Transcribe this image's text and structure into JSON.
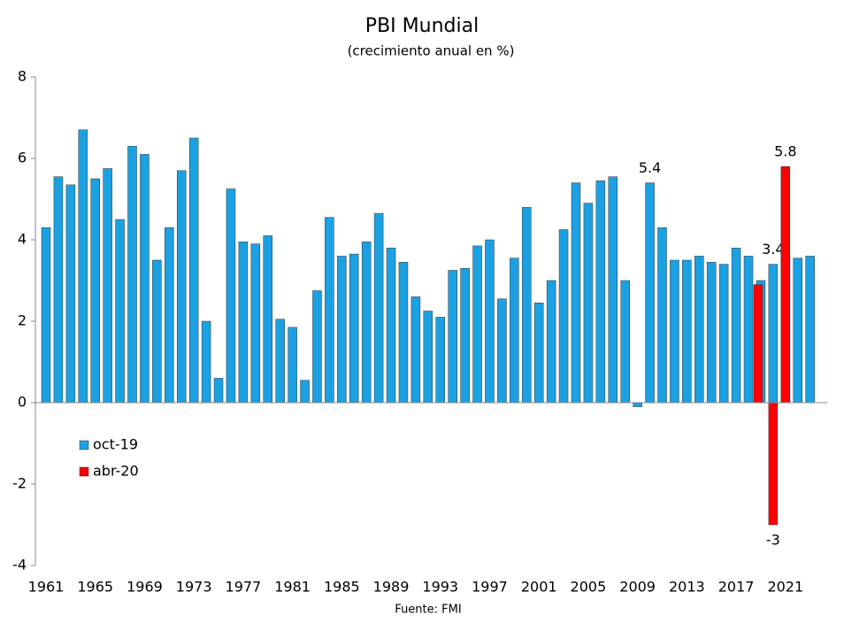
{
  "chart_data": {
    "type": "bar",
    "title": "PBI Mundial",
    "subtitle": "(crecimiento anual en %)",
    "source": "Fuente: FMI",
    "categories": [
      "1961",
      null,
      null,
      null,
      "1965",
      null,
      null,
      null,
      "1969",
      null,
      null,
      null,
      "1973",
      null,
      null,
      null,
      "1977",
      null,
      null,
      null,
      "1981",
      null,
      null,
      null,
      "1985",
      null,
      null,
      null,
      "1989",
      null,
      null,
      null,
      "1993",
      null,
      null,
      null,
      "1997",
      null,
      null,
      null,
      "2001",
      null,
      null,
      null,
      "2005",
      null,
      null,
      null,
      "2009",
      null,
      null,
      null,
      "2013",
      null,
      null,
      null,
      "2017",
      null,
      null,
      null,
      "2021",
      null,
      null
    ],
    "series": [
      {
        "name": "oct-19",
        "color": "#1ba1e2",
        "values": [
          4.3,
          5.55,
          5.35,
          6.7,
          5.5,
          5.75,
          4.5,
          6.3,
          6.1,
          3.5,
          4.3,
          5.7,
          6.5,
          2.0,
          0.6,
          5.25,
          3.95,
          3.9,
          4.1,
          2.05,
          1.85,
          0.55,
          2.75,
          4.55,
          3.6,
          3.65,
          3.95,
          4.65,
          3.8,
          3.45,
          2.6,
          2.25,
          2.1,
          3.25,
          3.3,
          3.85,
          4.0,
          2.55,
          3.55,
          4.8,
          2.45,
          3.0,
          4.25,
          5.4,
          4.9,
          5.45,
          5.55,
          3.0,
          -0.1,
          5.4,
          4.3,
          3.5,
          3.5,
          3.6,
          3.45,
          3.4,
          3.8,
          3.6,
          3.0,
          3.4,
          3.6,
          3.55,
          3.6
        ],
        "value_labels": [
          null,
          null,
          null,
          null,
          null,
          null,
          null,
          null,
          null,
          null,
          null,
          null,
          null,
          null,
          null,
          null,
          null,
          null,
          null,
          null,
          null,
          null,
          null,
          null,
          null,
          null,
          null,
          null,
          null,
          null,
          null,
          null,
          null,
          null,
          null,
          null,
          null,
          null,
          null,
          null,
          null,
          null,
          null,
          null,
          null,
          null,
          null,
          null,
          null,
          "5.4",
          null,
          null,
          null,
          null,
          null,
          null,
          null,
          null,
          null,
          "3.4",
          null,
          null,
          null
        ]
      },
      {
        "name": "abr-20",
        "color": "#ff0000",
        "values": [
          null,
          null,
          null,
          null,
          null,
          null,
          null,
          null,
          null,
          null,
          null,
          null,
          null,
          null,
          null,
          null,
          null,
          null,
          null,
          null,
          null,
          null,
          null,
          null,
          null,
          null,
          null,
          null,
          null,
          null,
          null,
          null,
          null,
          null,
          null,
          null,
          null,
          null,
          null,
          null,
          null,
          null,
          null,
          null,
          null,
          null,
          null,
          null,
          null,
          null,
          null,
          null,
          null,
          null,
          null,
          null,
          null,
          null,
          2.9,
          -3,
          5.8,
          null,
          null
        ],
        "value_labels": [
          null,
          null,
          null,
          null,
          null,
          null,
          null,
          null,
          null,
          null,
          null,
          null,
          null,
          null,
          null,
          null,
          null,
          null,
          null,
          null,
          null,
          null,
          null,
          null,
          null,
          null,
          null,
          null,
          null,
          null,
          null,
          null,
          null,
          null,
          null,
          null,
          null,
          null,
          null,
          null,
          null,
          null,
          null,
          null,
          null,
          null,
          null,
          null,
          null,
          null,
          null,
          null,
          null,
          null,
          null,
          null,
          null,
          null,
          null,
          "-3",
          "5.8",
          null,
          null
        ]
      }
    ],
    "ylim": [
      -4,
      8
    ],
    "yticks": [
      -4,
      -2,
      0,
      2,
      4,
      6,
      8
    ],
    "grid": false
  }
}
